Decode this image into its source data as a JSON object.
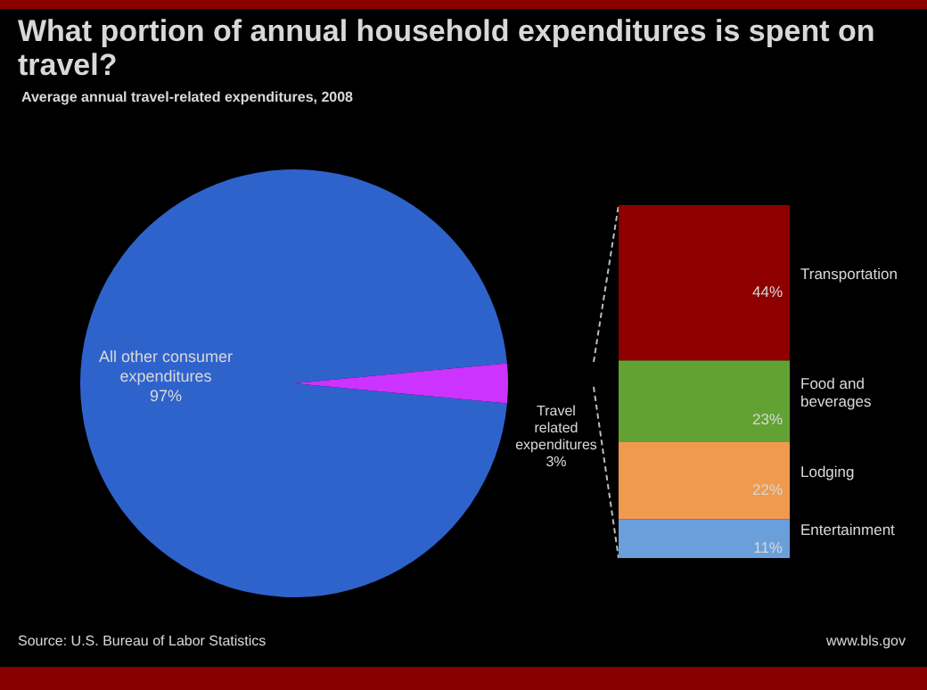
{
  "chart_data": [
    {
      "type": "pie",
      "title": "What portion of annual  household  expenditures is spent on travel?",
      "subtitle": "Average annual travel-related expenditures, 2008",
      "annotations": [
        "Source: U.S. Bureau of Labor Statistics",
        "www.bls.gov"
      ],
      "categories": [
        "All other consumer expenditures",
        "Travel related expenditures"
      ],
      "values": [
        97,
        3
      ],
      "colors": [
        "#2f63cc",
        "#cc33ff"
      ],
      "value_labels": [
        "97%",
        "3%"
      ]
    },
    {
      "type": "bar",
      "stacked": true,
      "categories": [
        null
      ],
      "series": [
        {
          "name": "Entertainment",
          "color": "#6a9fdc",
          "values": [
            11
          ],
          "value_labels": [
            "11%"
          ]
        },
        {
          "name": "Lodging",
          "color": "#f09a50",
          "values": [
            22
          ],
          "value_labels": [
            "22%"
          ]
        },
        {
          "name": "Food and beverages",
          "color": "#62a232",
          "values": [
            23
          ],
          "value_labels": [
            "23%"
          ]
        },
        {
          "name": "Transportation",
          "color": "#8e0000",
          "values": [
            44
          ],
          "value_labels": [
            "44%"
          ]
        }
      ]
    }
  ]
}
